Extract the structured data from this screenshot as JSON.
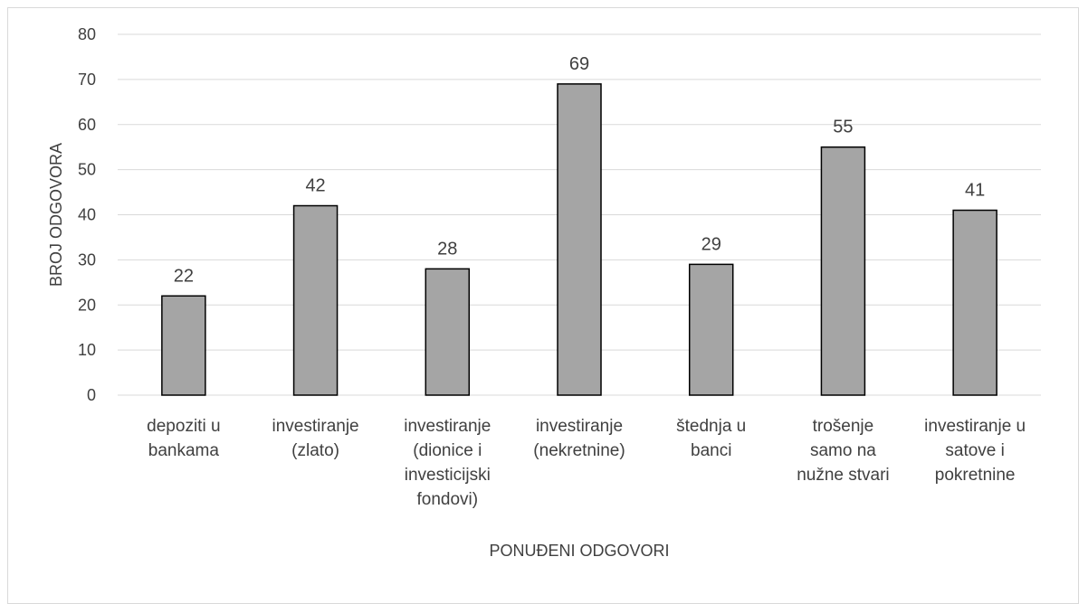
{
  "chart_data": {
    "type": "bar",
    "categories": [
      [
        "depoziti u",
        "bankama"
      ],
      [
        "investiranje",
        "(zlato)"
      ],
      [
        "investiranje",
        "(dionice i",
        "investicijski",
        "fondovi)"
      ],
      [
        "investiranje",
        "(nekretnine)"
      ],
      [
        "štednja u",
        "banci"
      ],
      [
        "trošenje",
        "samo na",
        "nužne stvari"
      ],
      [
        "investiranje u",
        "satove i",
        "pokretnine"
      ]
    ],
    "values": [
      22,
      42,
      28,
      69,
      29,
      55,
      41
    ],
    "title": "",
    "xlabel": "PONUĐENI ODGOVORI",
    "ylabel": "BROJ ODGOVORA",
    "ylim": [
      0,
      80
    ],
    "yticks": [
      0,
      10,
      20,
      30,
      40,
      50,
      60,
      70,
      80
    ],
    "grid": true,
    "data_labels": true,
    "colors": {
      "bar_fill": "#a5a5a5",
      "bar_stroke": "#000000",
      "grid": "#d9d9d9",
      "text": "#404040"
    }
  }
}
